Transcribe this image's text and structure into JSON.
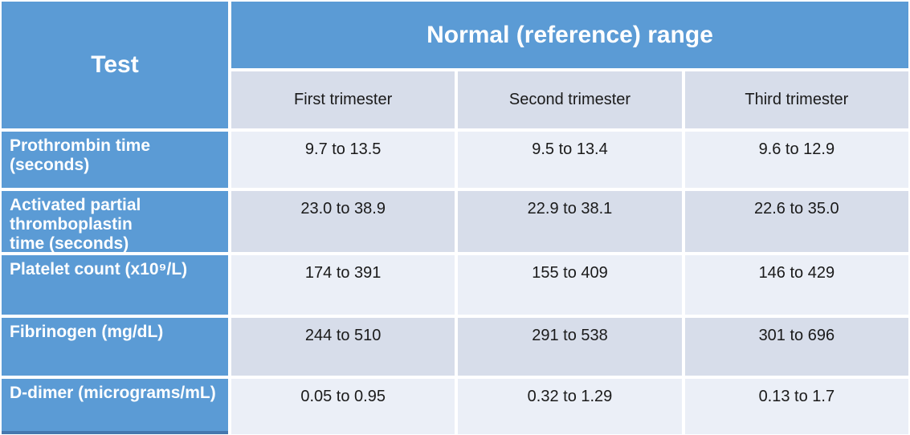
{
  "slide": {
    "corner_header": "Test",
    "group_header": "Normal (reference) range",
    "column_headers": [
      "First trimester",
      "Second trimester",
      "Third trimester"
    ],
    "rows": [
      {
        "test": "Prothrombin time\n(seconds)",
        "values": [
          "9.7 to 13.5",
          "9.5 to 13.4",
          "9.6 to 12.9"
        ]
      },
      {
        "test": "Activated partial\nthromboplastin\ntime (seconds)",
        "values": [
          "23.0 to 38.9",
          "22.9 to 38.1",
          "22.6 to 35.0"
        ]
      },
      {
        "test": "Platelet count (x10⁹/L)",
        "values": [
          "174 to 391",
          "155 to 409",
          "146 to 429"
        ]
      },
      {
        "test": "Fibrinogen (mg/dL)",
        "values": [
          "244 to 510",
          "291 to 538",
          "301 to 696"
        ]
      },
      {
        "test": "D-dimer (micrograms/mL)",
        "values": [
          "0.05 to 0.95",
          "0.32 to 1.29",
          "0.13 to 1.7"
        ]
      }
    ],
    "colors": {
      "header_blue": "#5B9BD5",
      "band_light": "#EBEFF7",
      "band_dark": "#D7DDEA",
      "gridline_white": "#FFFFFF",
      "text_dark": "#1A1A1A",
      "header_text_white": "#FFFFFF",
      "table_bottom_accent": "#4577AE"
    }
  },
  "chart_data": {
    "type": "table",
    "title": "Normal (reference) range",
    "corner_label": "Test",
    "columns": [
      "First trimester",
      "Second trimester",
      "Third trimester"
    ],
    "row_labels": [
      "Prothrombin time (seconds)",
      "Activated partial thromboplastin time (seconds)",
      "Platelet count (x10⁹/L)",
      "Fibrinogen (mg/dL)",
      "D-dimer (micrograms/mL)"
    ],
    "cells": [
      [
        "9.7 to 13.5",
        "9.5 to 13.4",
        "9.6 to 12.9"
      ],
      [
        "23.0 to 38.9",
        "22.9 to 38.1",
        "22.6 to 35.0"
      ],
      [
        "174 to 391",
        "155 to 409",
        "146 to 429"
      ],
      [
        "244 to 510",
        "291 to 538",
        "301 to 696"
      ],
      [
        "0.05 to 0.95",
        "0.32 to 1.29",
        "0.13 to 1.7"
      ]
    ]
  }
}
